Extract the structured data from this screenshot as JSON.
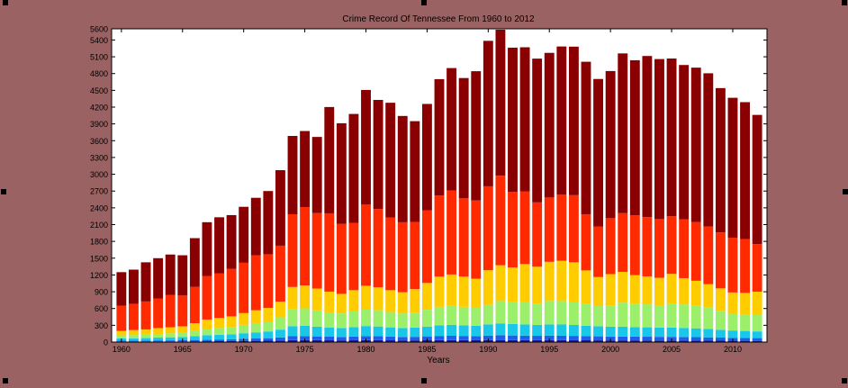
{
  "colors": {
    "background": "#9a6262",
    "plot_background": "#ffffff"
  },
  "chart_data": {
    "type": "bar",
    "stacked": true,
    "title": "Crime Record Of Tennessee From 1960 to 2012",
    "xlabel": "Years",
    "ylabel": "",
    "xlim": [
      1959.2,
      2012.8
    ],
    "ylim": [
      0,
      5600
    ],
    "grid": false,
    "legend": "none",
    "x_ticks": [
      1960,
      1965,
      1970,
      1975,
      1980,
      1985,
      1990,
      1995,
      2000,
      2005,
      2010
    ],
    "y_ticks": [
      0,
      300,
      600,
      900,
      1200,
      1500,
      1800,
      2100,
      2400,
      2700,
      3000,
      3300,
      3600,
      3900,
      4200,
      4500,
      4800,
      5100,
      5400,
      5600
    ],
    "x": [
      1960,
      1961,
      1962,
      1963,
      1964,
      1965,
      1966,
      1967,
      1968,
      1969,
      1970,
      1971,
      1972,
      1973,
      1974,
      1975,
      1976,
      1977,
      1978,
      1979,
      1980,
      1981,
      1982,
      1983,
      1984,
      1985,
      1986,
      1987,
      1988,
      1989,
      1990,
      1991,
      1992,
      1993,
      1994,
      1995,
      1996,
      1997,
      1998,
      1999,
      2000,
      2001,
      2002,
      2003,
      2004,
      2005,
      2006,
      2007,
      2008,
      2009,
      2010,
      2011,
      2012
    ],
    "series": [
      {
        "color": "#1a1aa0",
        "values": [
          10,
          10,
          10,
          12,
          12,
          12,
          14,
          15,
          16,
          18,
          20,
          22,
          24,
          28,
          35,
          36,
          34,
          32,
          30,
          32,
          35,
          34,
          32,
          30,
          30,
          32,
          34,
          35,
          34,
          33,
          35,
          38,
          36,
          35,
          34,
          35,
          34,
          33,
          32,
          31,
          30,
          30,
          30,
          29,
          28,
          28,
          27,
          26,
          25,
          24,
          23,
          22,
          21
        ]
      },
      {
        "color": "#1e5fe8",
        "values": [
          15,
          15,
          16,
          18,
          18,
          20,
          24,
          28,
          30,
          32,
          38,
          42,
          46,
          55,
          70,
          72,
          68,
          65,
          62,
          66,
          72,
          70,
          66,
          62,
          64,
          70,
          76,
          78,
          76,
          74,
          80,
          86,
          82,
          80,
          78,
          80,
          80,
          78,
          74,
          72,
          70,
          70,
          68,
          67,
          66,
          66,
          64,
          62,
          60,
          56,
          54,
          52,
          50
        ]
      },
      {
        "color": "#19c8e8",
        "values": [
          40,
          42,
          45,
          50,
          55,
          60,
          70,
          80,
          85,
          90,
          100,
          110,
          120,
          140,
          180,
          185,
          175,
          165,
          160,
          170,
          180,
          175,
          165,
          160,
          165,
          175,
          190,
          195,
          190,
          185,
          200,
          210,
          205,
          200,
          195,
          200,
          200,
          195,
          185,
          180,
          175,
          175,
          170,
          168,
          165,
          165,
          162,
          158,
          150,
          140,
          130,
          125,
          120
        ]
      },
      {
        "color": "#9bef6a",
        "values": [
          55,
          58,
          60,
          65,
          70,
          75,
          90,
          110,
          120,
          130,
          150,
          165,
          180,
          220,
          300,
          310,
          290,
          270,
          260,
          280,
          300,
          290,
          275,
          260,
          270,
          300,
          330,
          340,
          330,
          320,
          350,
          400,
          390,
          400,
          380,
          420,
          420,
          410,
          390,
          360,
          380,
          430,
          420,
          410,
          400,
          430,
          420,
          400,
          380,
          340,
          300,
          290,
          300
        ]
      },
      {
        "color": "#ffcc00",
        "values": [
          80,
          90,
          95,
          105,
          110,
          115,
          140,
          170,
          180,
          190,
          210,
          230,
          240,
          280,
          400,
          410,
          390,
          370,
          350,
          380,
          420,
          410,
          390,
          380,
          420,
          480,
          540,
          560,
          540,
          520,
          620,
          640,
          620,
          680,
          660,
          700,
          720,
          710,
          600,
          520,
          560,
          550,
          510,
          500,
          490,
          530,
          470,
          450,
          420,
          400,
          380,
          390,
          410
        ]
      },
      {
        "color": "#ff2a00",
        "values": [
          450,
          470,
          500,
          530,
          580,
          550,
          650,
          780,
          800,
          850,
          900,
          980,
          960,
          1000,
          1300,
          1400,
          1350,
          1400,
          1250,
          1200,
          1450,
          1400,
          1300,
          1250,
          1200,
          1300,
          1450,
          1500,
          1400,
          1400,
          1500,
          1600,
          1350,
          1300,
          1150,
          1150,
          1180,
          1200,
          1000,
          900,
          1000,
          1050,
          1070,
          1060,
          1050,
          1030,
          1050,
          1050,
          1030,
          1000,
          980,
          960,
          850
        ]
      },
      {
        "color": "#8a0000",
        "values": [
          600,
          610,
          700,
          720,
          720,
          720,
          870,
          960,
          1000,
          960,
          1000,
          1030,
          1130,
          1350,
          1400,
          1360,
          1360,
          1900,
          1800,
          1950,
          2050,
          1950,
          2050,
          1900,
          1800,
          1900,
          2080,
          2190,
          2150,
          2310,
          2600,
          2610,
          2580,
          2575,
          2570,
          2585,
          2650,
          2655,
          2730,
          2640,
          2630,
          2855,
          2770,
          2880,
          2860,
          2820,
          2760,
          2760,
          2740,
          2580,
          2500,
          2450,
          2310
        ]
      }
    ]
  }
}
